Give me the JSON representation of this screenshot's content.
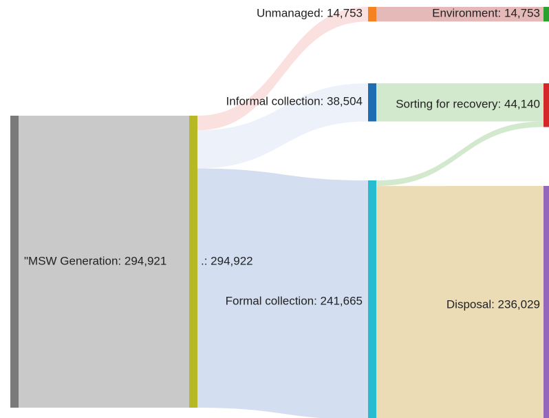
{
  "chart_data": {
    "type": "sankey",
    "nodes": [
      {
        "label": "\"MSW Generation: 294,921",
        "value": 294921,
        "color": "#7a7a7a"
      },
      {
        "label": ".: 294,922",
        "value": 294922,
        "color": "#b7b826"
      },
      {
        "label": "Unmanaged: 14,753",
        "value": 14753,
        "color": "#f58220"
      },
      {
        "label": "Informal collection: 38,504",
        "value": 38504,
        "color": "#1f6eb4"
      },
      {
        "label": "Formal collection: 241,665",
        "value": 241665,
        "color": "#27bcd0"
      },
      {
        "label": "Environment: 14,753",
        "value": 14753,
        "color": "#2ca02c"
      },
      {
        "label": "Sorting for recovery: 44,140",
        "value": 44140,
        "color": "#d62728"
      },
      {
        "label": "Disposal: 236,029",
        "value": 236029,
        "color": "#9467bd"
      }
    ],
    "links": [
      {
        "source": 0,
        "target": 1,
        "value": 294921,
        "color": "#c9c9c9"
      },
      {
        "source": 1,
        "target": 2,
        "value": 14753,
        "color": "#fbe0e0"
      },
      {
        "source": 1,
        "target": 3,
        "value": 38504,
        "color": "#edf2fa"
      },
      {
        "source": 1,
        "target": 4,
        "value": 241665,
        "color": "#d3def0"
      },
      {
        "source": 2,
        "target": 5,
        "value": 14753,
        "color": "#e6b9b9"
      },
      {
        "source": 3,
        "target": 6,
        "value": 38504,
        "color": "#d3e9cd"
      },
      {
        "source": 4,
        "target": 6,
        "value": 5636,
        "color": "#d3e9cd"
      },
      {
        "source": 4,
        "target": 7,
        "value": 236029,
        "color": "#ecdcb6"
      }
    ]
  }
}
